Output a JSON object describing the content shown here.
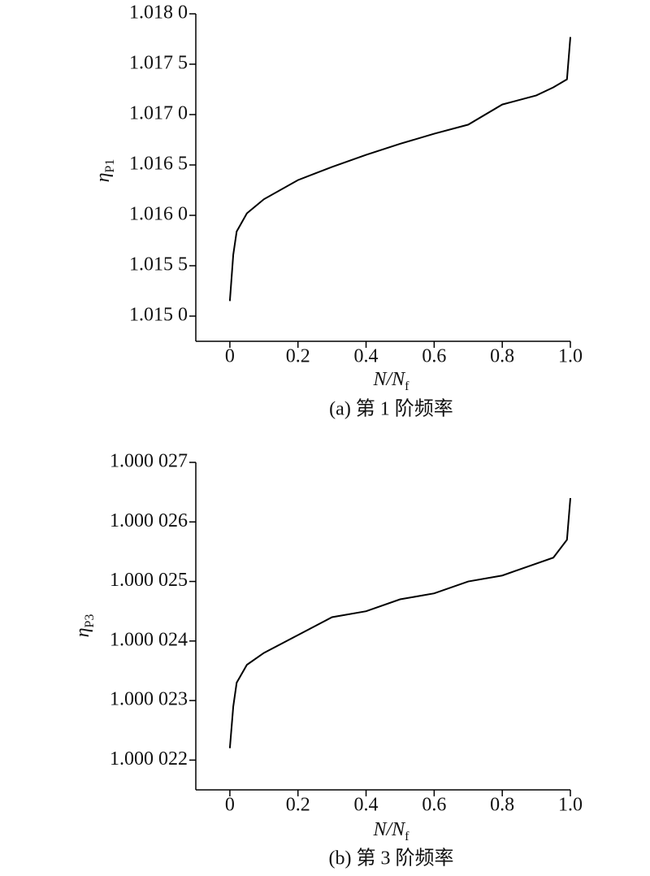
{
  "chart_data": [
    {
      "type": "line",
      "caption": "(a) 第 1 阶频率",
      "x_label": "N/N",
      "x_label_sub": "f",
      "y_label": "η",
      "y_label_sub": "P1",
      "x": [
        0,
        0.01,
        0.02,
        0.05,
        0.1,
        0.2,
        0.3,
        0.4,
        0.5,
        0.6,
        0.7,
        0.8,
        0.9,
        0.95,
        0.99,
        1.0
      ],
      "values": [
        1.01515,
        1.01561,
        1.01584,
        1.01602,
        1.01616,
        1.01635,
        1.01648,
        1.0166,
        1.01671,
        1.01681,
        1.0169,
        1.0171,
        1.01719,
        1.01727,
        1.01735,
        1.01777
      ],
      "color": "#000000",
      "xlim": [
        -0.1,
        1.0
      ],
      "xticks": [
        0,
        0.2,
        0.4,
        0.6,
        0.8,
        {
          "value": 1.0,
          "label": "1.0"
        }
      ],
      "ylim": [
        1.01475,
        1.018
      ],
      "yticks": [
        {
          "value": 1.015,
          "label": "1.015 0"
        },
        {
          "value": 1.0155,
          "label": "1.015 5"
        },
        {
          "value": 1.016,
          "label": "1.016 0"
        },
        {
          "value": 1.0165,
          "label": "1.016 5"
        },
        {
          "value": 1.017,
          "label": "1.017 0"
        },
        {
          "value": 1.0175,
          "label": "1.017 5"
        },
        {
          "value": 1.018,
          "label": "1.018 0"
        }
      ]
    },
    {
      "type": "line",
      "caption": "(b) 第 3 阶频率",
      "x_label": "N/N",
      "x_label_sub": "f",
      "y_label": "η",
      "y_label_sub": "P3",
      "x": [
        0,
        0.01,
        0.02,
        0.05,
        0.1,
        0.2,
        0.3,
        0.4,
        0.5,
        0.6,
        0.7,
        0.8,
        0.9,
        0.95,
        0.99,
        1.0
      ],
      "values": [
        1.0000222,
        1.0000229,
        1.0000233,
        1.0000236,
        1.0000238,
        1.0000241,
        1.0000244,
        1.0000245,
        1.0000247,
        1.0000248,
        1.000025,
        1.0000251,
        1.0000253,
        1.0000254,
        1.0000257,
        1.0000264
      ],
      "color": "#000000",
      "xlim": [
        -0.1,
        1.0
      ],
      "xticks": [
        0,
        0.2,
        0.4,
        0.6,
        0.8,
        {
          "value": 1.0,
          "label": "1.0"
        }
      ],
      "ylim": [
        1.0000215,
        1.000027
      ],
      "yticks": [
        {
          "value": 1.000022,
          "label": "1.000 022"
        },
        {
          "value": 1.000023,
          "label": "1.000 023"
        },
        {
          "value": 1.000024,
          "label": "1.000 024"
        },
        {
          "value": 1.000025,
          "label": "1.000 025"
        },
        {
          "value": 1.000026,
          "label": "1.000 026"
        },
        {
          "value": 1.000027,
          "label": "1.000 027"
        }
      ]
    }
  ]
}
